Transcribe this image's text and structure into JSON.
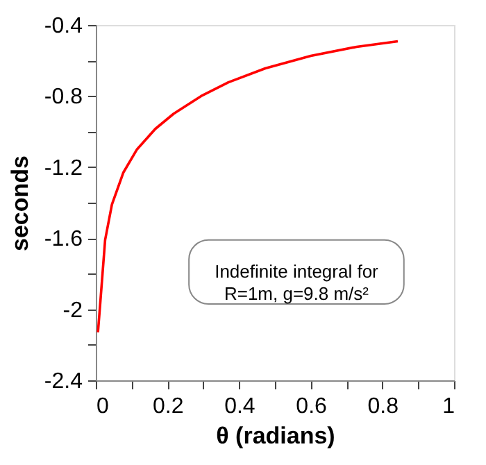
{
  "chart_data": {
    "type": "line",
    "xlabel": "θ (radians)",
    "ylabel": "seconds",
    "x": [
      0.006,
      0.013,
      0.026,
      0.045,
      0.077,
      0.115,
      0.166,
      0.217,
      0.294,
      0.37,
      0.473,
      0.6,
      0.728,
      0.843
    ],
    "series": [
      {
        "color": "#ff0000",
        "values": [
          -2.13,
          -1.95,
          -1.61,
          -1.41,
          -1.23,
          -1.1,
          -0.985,
          -0.9,
          -0.8,
          -0.723,
          -0.644,
          -0.574,
          -0.523,
          -0.492
        ]
      }
    ],
    "xlim": [
      0,
      1
    ],
    "ylim": [
      -2.4,
      -0.4
    ],
    "xticks": [
      0,
      {
        "value": 0.1,
        "label": null
      },
      0.2,
      {
        "value": 0.3,
        "label": null
      },
      0.4,
      {
        "value": 0.5,
        "label": null
      },
      0.6,
      {
        "value": 0.7,
        "label": null
      },
      0.8,
      {
        "value": 0.9,
        "label": null
      },
      1
    ],
    "yticks": [
      -2.4,
      {
        "value": -2.2,
        "label": null
      },
      -2,
      {
        "value": -1.8,
        "label": null
      },
      -1.6,
      {
        "value": -1.4,
        "label": null
      },
      -1.2,
      {
        "value": -1,
        "label": null
      },
      -0.8,
      {
        "value": -0.6,
        "label": null
      },
      -0.4
    ],
    "annotations": [
      "Indefinite integral for\nR=1m, g=9.8 m/s²"
    ],
    "grid": false,
    "marker": "none",
    "line_style": "solid"
  }
}
